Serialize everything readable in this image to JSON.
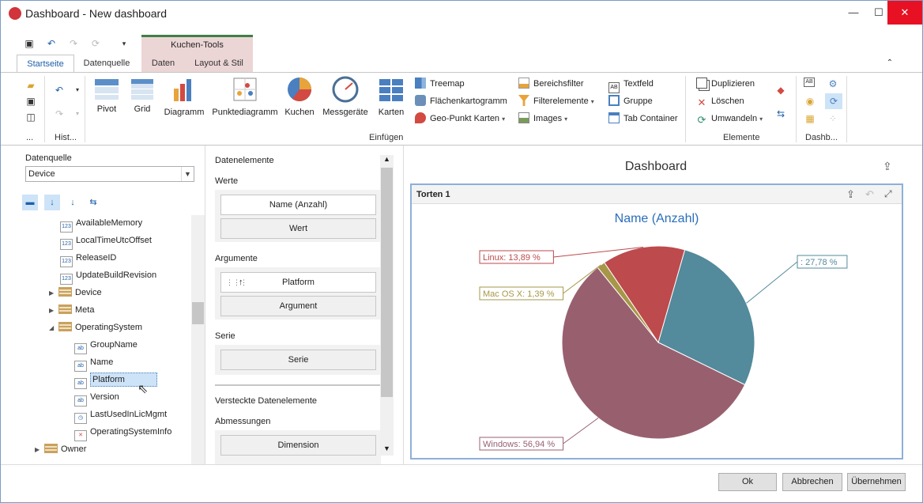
{
  "window": {
    "title": "Dashboard - New dashboard"
  },
  "ribbon": {
    "contextual_header": "Kuchen-Tools",
    "tabs": [
      "Startseite",
      "Datenquelle",
      "Daten",
      "Layout & Stil"
    ],
    "history_group": "Hist...",
    "more_group": "...",
    "big_buttons": [
      "Pivot",
      "Grid",
      "Diagramm",
      "Punktediagramm",
      "Kuchen",
      "Messgeräte",
      "Karten"
    ],
    "small_col1": [
      "Treemap",
      "Flächenkartogramm",
      "Geo-Punkt Karten"
    ],
    "small_col2": [
      "Bereichsfilter",
      "Filterelemente",
      "Images"
    ],
    "small_col3": [
      "Textfeld",
      "Gruppe",
      "Tab Container"
    ],
    "insert_group": "Einfügen",
    "elements": [
      "Duplizieren",
      "Löschen",
      "Umwandeln"
    ],
    "elements_group": "Elemente",
    "dash_group": "Dashb..."
  },
  "datasource": {
    "label": "Datenquelle",
    "value": "Device"
  },
  "tree": [
    {
      "label": "AvailableMemory"
    },
    {
      "label": "LocalTimeUtcOffset"
    },
    {
      "label": "ReleaseID"
    },
    {
      "label": "UpdateBuildRevision"
    },
    {
      "label": "Device"
    },
    {
      "label": "Meta"
    },
    {
      "label": "OperatingSystem"
    },
    {
      "label": "GroupName"
    },
    {
      "label": "Name"
    },
    {
      "label": "Platform"
    },
    {
      "label": "Version"
    },
    {
      "label": "LastUsedInLicMgmt"
    },
    {
      "label": "OperatingSystemInfo"
    },
    {
      "label": "Owner"
    }
  ],
  "data_items": {
    "header": "Datenelemente",
    "values_label": "Werte",
    "values_item": "Name (Anzahl)",
    "values_placeholder": "Wert",
    "arguments_label": "Argumente",
    "arguments_item": "Platform",
    "arguments_placeholder": "Argument",
    "series_label": "Serie",
    "series_placeholder": "Serie",
    "hidden_label": "Versteckte Datenelemente",
    "dimensions_label": "Abmessungen",
    "dimensions_placeholder": "Dimension"
  },
  "dashboard": {
    "title": "Dashboard",
    "item_title": "Torten 1"
  },
  "chart_data": {
    "type": "pie",
    "title": "Name (Anzahl)",
    "slices": [
      {
        "label": ": 27,78 %",
        "value": 27.78,
        "color": "#538a9c"
      },
      {
        "label": "Windows: 56,94 %",
        "value": 56.94,
        "color": "#98606f"
      },
      {
        "label": "Mac OS X: 1,39 %",
        "value": 1.39,
        "color": "#a69748"
      },
      {
        "label": "Linux: 13,89 %",
        "value": 13.89,
        "color": "#bd4a4c"
      }
    ]
  },
  "buttons": {
    "ok": "Ok",
    "cancel": "Abbrechen",
    "apply": "Übernehmen"
  }
}
